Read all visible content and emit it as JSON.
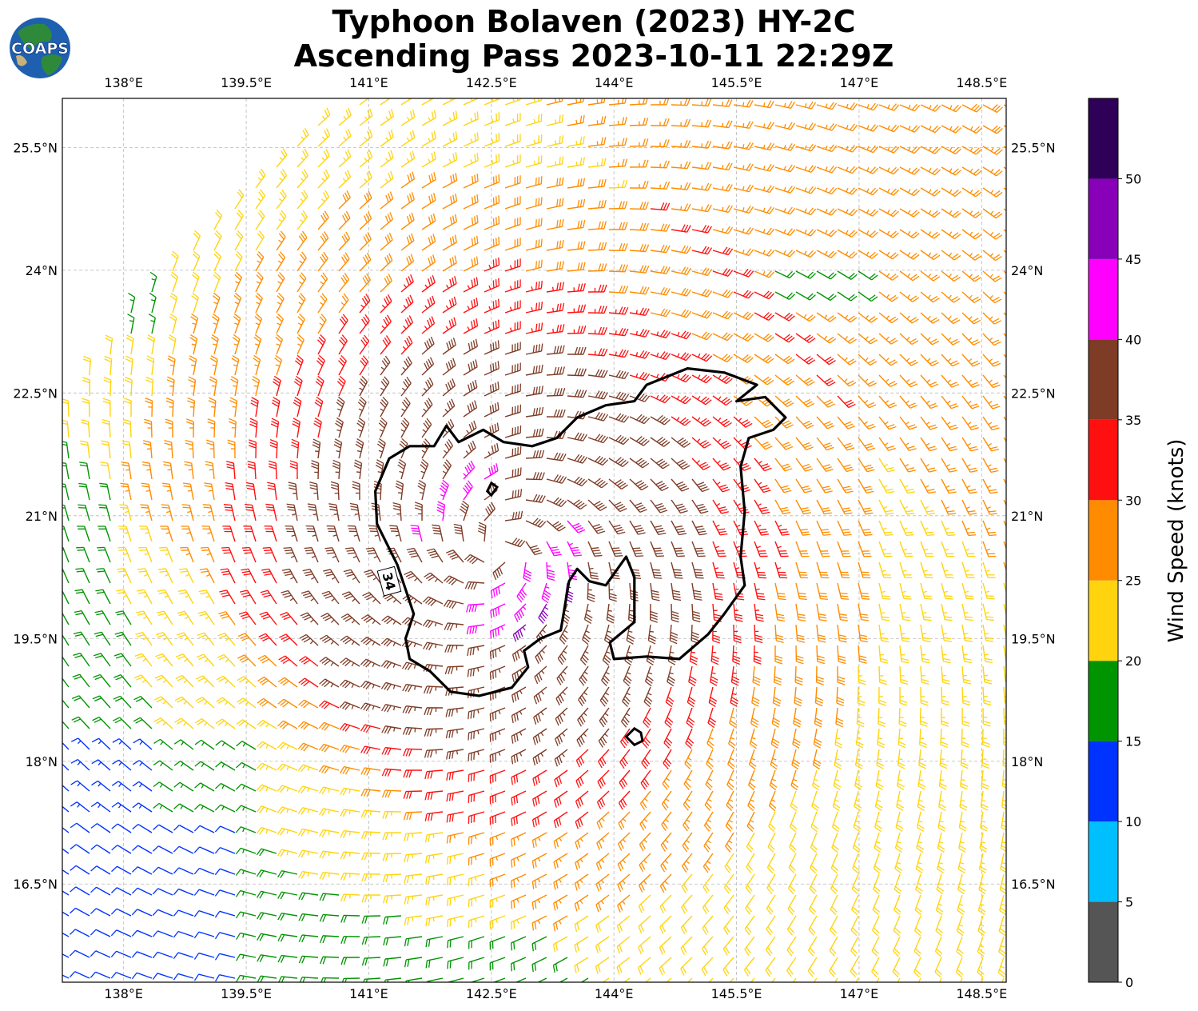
{
  "logo": {
    "text": "COAPS"
  },
  "title": {
    "line1": "Typhoon Bolaven (2023) HY-2C",
    "line2": "Ascending Pass 2023-10-11 22:29Z"
  },
  "map": {
    "lon_range": [
      137.25,
      148.8
    ],
    "lat_range": [
      15.3,
      26.1
    ],
    "lon_ticks": [
      {
        "value": 138.0,
        "label": "138°E"
      },
      {
        "value": 139.5,
        "label": "139.5°E"
      },
      {
        "value": 141.0,
        "label": "141°E"
      },
      {
        "value": 142.5,
        "label": "142.5°E"
      },
      {
        "value": 144.0,
        "label": "144°E"
      },
      {
        "value": 145.5,
        "label": "145.5°E"
      },
      {
        "value": 147.0,
        "label": "147°E"
      },
      {
        "value": 148.5,
        "label": "148.5°E"
      }
    ],
    "lat_ticks": [
      {
        "value": 25.5,
        "label": "25.5°N"
      },
      {
        "value": 24.0,
        "label": "24°N"
      },
      {
        "value": 22.5,
        "label": "22.5°N"
      },
      {
        "value": 21.0,
        "label": "21°N"
      },
      {
        "value": 19.5,
        "label": "19.5°N"
      },
      {
        "value": 18.0,
        "label": "18°N"
      },
      {
        "value": 16.5,
        "label": "16.5°N"
      }
    ],
    "gridlines": true,
    "storm_center": {
      "lon": 142.6,
      "lat": 20.6
    },
    "contour": {
      "label": "34",
      "units_note": "34-knot wind radius",
      "points": [
        [
          141.08,
          21.3
        ],
        [
          141.25,
          21.7
        ],
        [
          141.5,
          21.85
        ],
        [
          141.8,
          21.85
        ],
        [
          141.95,
          22.1
        ],
        [
          142.1,
          21.9
        ],
        [
          142.4,
          22.05
        ],
        [
          142.65,
          21.9
        ],
        [
          143.0,
          21.85
        ],
        [
          143.3,
          21.95
        ],
        [
          143.55,
          22.2
        ],
        [
          143.9,
          22.35
        ],
        [
          144.25,
          22.4
        ],
        [
          144.4,
          22.6
        ],
        [
          144.9,
          22.8
        ],
        [
          145.35,
          22.75
        ],
        [
          145.75,
          22.6
        ],
        [
          145.5,
          22.4
        ],
        [
          145.85,
          22.45
        ],
        [
          146.1,
          22.2
        ],
        [
          145.95,
          22.05
        ],
        [
          145.65,
          21.95
        ],
        [
          145.55,
          21.6
        ],
        [
          145.6,
          21.05
        ],
        [
          145.55,
          20.5
        ],
        [
          145.6,
          20.15
        ],
        [
          145.35,
          19.8
        ],
        [
          145.15,
          19.55
        ],
        [
          144.8,
          19.25
        ],
        [
          144.4,
          19.28
        ],
        [
          144.0,
          19.25
        ],
        [
          143.95,
          19.45
        ],
        [
          144.25,
          19.7
        ],
        [
          144.25,
          20.25
        ],
        [
          144.15,
          20.5
        ],
        [
          143.9,
          20.15
        ],
        [
          143.7,
          20.2
        ],
        [
          143.55,
          20.35
        ],
        [
          143.45,
          20.2
        ],
        [
          143.35,
          19.6
        ],
        [
          143.1,
          19.5
        ],
        [
          142.9,
          19.35
        ],
        [
          142.95,
          19.15
        ],
        [
          142.75,
          18.9
        ],
        [
          142.35,
          18.8
        ],
        [
          142.0,
          18.85
        ],
        [
          141.75,
          19.1
        ],
        [
          141.5,
          19.25
        ],
        [
          141.45,
          19.5
        ],
        [
          141.55,
          19.8
        ],
        [
          141.45,
          20.1
        ],
        [
          141.35,
          20.4
        ],
        [
          141.1,
          20.9
        ]
      ],
      "islands": [
        [
          [
            142.5,
            21.4
          ],
          [
            142.45,
            21.3
          ],
          [
            142.5,
            21.25
          ],
          [
            142.57,
            21.35
          ]
        ],
        [
          [
            144.25,
            18.4
          ],
          [
            144.33,
            18.35
          ],
          [
            144.35,
            18.25
          ],
          [
            144.25,
            18.2
          ],
          [
            144.15,
            18.3
          ]
        ]
      ]
    }
  },
  "colorbar": {
    "label": "Wind Speed (knots)",
    "bins": [
      {
        "min": 0,
        "max": 5,
        "color": "#555555"
      },
      {
        "min": 5,
        "max": 10,
        "color": "#00bfff"
      },
      {
        "min": 10,
        "max": 15,
        "color": "#0033ff"
      },
      {
        "min": 15,
        "max": 20,
        "color": "#009400"
      },
      {
        "min": 20,
        "max": 25,
        "color": "#ffd40f"
      },
      {
        "min": 25,
        "max": 30,
        "color": "#ff8c00"
      },
      {
        "min": 30,
        "max": 35,
        "color": "#ff1010"
      },
      {
        "min": 35,
        "max": 40,
        "color": "#7e3b26"
      },
      {
        "min": 40,
        "max": 45,
        "color": "#ff00ff"
      },
      {
        "min": 45,
        "max": 50,
        "color": "#8800b8"
      },
      {
        "min": 50,
        "max": 55,
        "color": "#2e0058"
      }
    ],
    "ticks": [
      "0",
      "5",
      "10",
      "15",
      "20",
      "25",
      "30",
      "35",
      "40",
      "45",
      "50"
    ]
  }
}
